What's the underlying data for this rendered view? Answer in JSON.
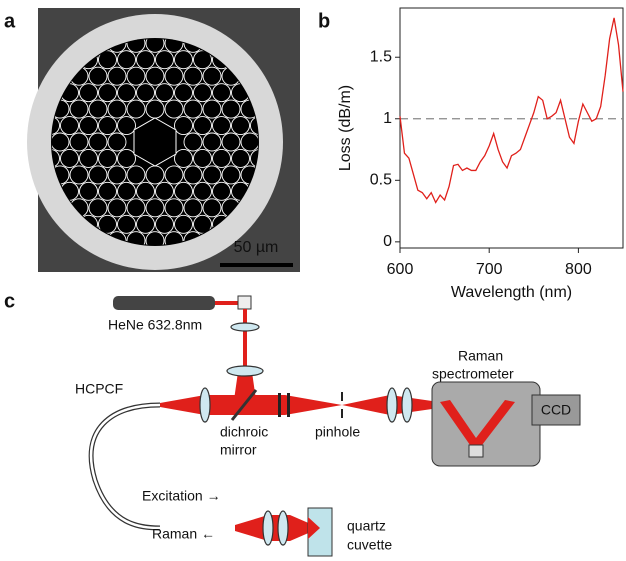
{
  "panels": {
    "a": {
      "label": "a",
      "scale_bar": "50 µm"
    },
    "b": {
      "label": "b"
    },
    "c": {
      "label": "c",
      "laser": "HeNe 632.8nm",
      "fiber": "HCPCF",
      "dichroic": [
        "dichroic",
        "mirror"
      ],
      "pinhole": "pinhole",
      "spectrometer": [
        "Raman",
        "spectrometer"
      ],
      "detector": "CCD",
      "excitation": "Excitation →",
      "raman": "Raman ←",
      "cuvette": [
        "quartz",
        "cuvette"
      ]
    }
  },
  "chart_data": {
    "type": "line",
    "xlabel": "Wavelength (nm)",
    "ylabel": "Loss (dB/m)",
    "color": "#e0201b",
    "x": [
      600,
      605,
      610,
      615,
      620,
      625,
      630,
      635,
      640,
      645,
      650,
      655,
      660,
      665,
      670,
      675,
      680,
      685,
      690,
      695,
      700,
      705,
      710,
      715,
      720,
      725,
      730,
      735,
      740,
      745,
      750,
      755,
      760,
      765,
      770,
      775,
      780,
      785,
      790,
      795,
      800,
      805,
      810,
      815,
      820,
      825,
      830,
      835,
      840,
      845,
      850
    ],
    "values": [
      1.02,
      0.72,
      0.68,
      0.55,
      0.42,
      0.4,
      0.35,
      0.4,
      0.32,
      0.38,
      0.34,
      0.45,
      0.62,
      0.63,
      0.58,
      0.6,
      0.58,
      0.58,
      0.65,
      0.7,
      0.78,
      0.88,
      0.75,
      0.65,
      0.6,
      0.7,
      0.72,
      0.75,
      0.85,
      0.95,
      1.05,
      1.18,
      1.15,
      1.0,
      1.02,
      1.05,
      1.15,
      1.0,
      0.85,
      0.8,
      0.98,
      1.12,
      1.05,
      0.98,
      1.0,
      1.1,
      1.35,
      1.65,
      1.82,
      1.6,
      1.22
    ],
    "xlim": [
      600,
      850
    ],
    "ylim": [
      -0.05,
      1.9
    ],
    "xticks": [
      600,
      700,
      800
    ],
    "yticks": [
      0,
      0.5,
      1,
      1.5
    ],
    "reference_line": 1
  }
}
